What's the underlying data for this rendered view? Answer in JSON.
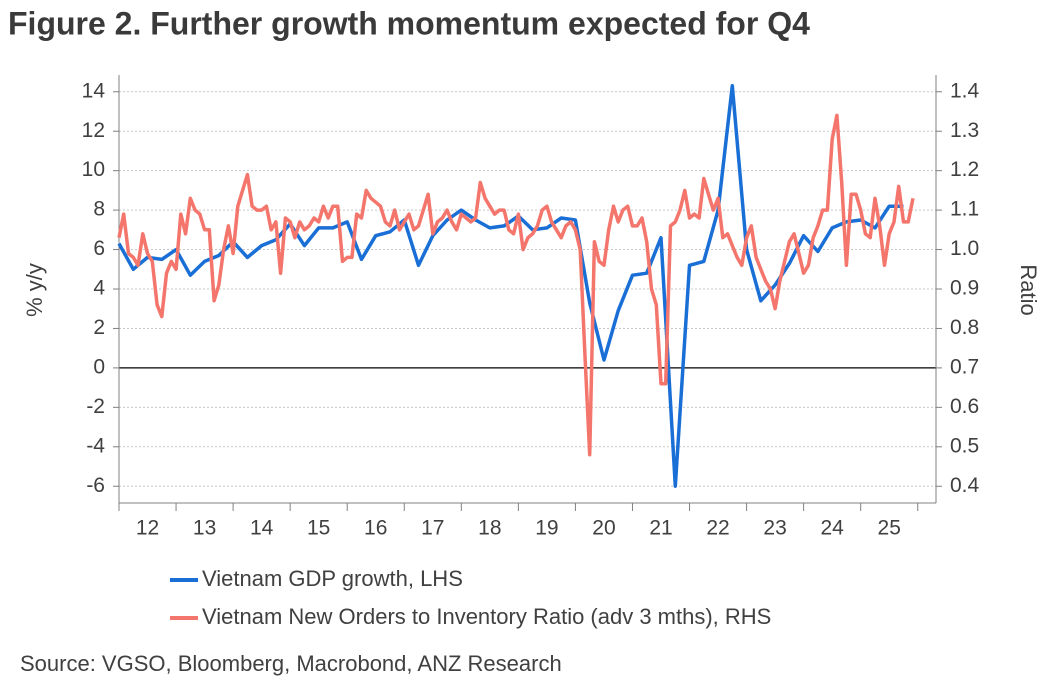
{
  "chart_data": {
    "type": "line",
    "title": "Figure 2. Further growth momentum expected for Q4",
    "y_label": "% y/y",
    "y2_label": "Ratio",
    "source": "Source: VGSO, Bloomberg, Macrobond, ANZ Research",
    "xlim": [
      2012,
      2026.32
    ],
    "xticks": [
      2012,
      2013,
      2014,
      2015,
      2016,
      2017,
      2018,
      2019,
      2020,
      2021,
      2022,
      2023,
      2024,
      2025,
      2026
    ],
    "xtick_labels": [
      {
        "value": 2012.5,
        "label": "12"
      },
      {
        "value": 2013.5,
        "label": "13"
      },
      {
        "value": 2014.5,
        "label": "14"
      },
      {
        "value": 2015.5,
        "label": "15"
      },
      {
        "value": 2016.5,
        "label": "16"
      },
      {
        "value": 2017.5,
        "label": "17"
      },
      {
        "value": 2018.5,
        "label": "18"
      },
      {
        "value": 2019.5,
        "label": "19"
      },
      {
        "value": 2020.5,
        "label": "20"
      },
      {
        "value": 2021.5,
        "label": "21"
      },
      {
        "value": 2022.5,
        "label": "22"
      },
      {
        "value": 2023.5,
        "label": "23"
      },
      {
        "value": 2024.5,
        "label": "24"
      },
      {
        "value": 2025.5,
        "label": "25"
      }
    ],
    "ylim": [
      -6.85,
      14.85
    ],
    "yticks": [
      -6,
      -4,
      -2,
      0,
      2,
      4,
      6,
      8,
      10,
      12,
      14
    ],
    "y2lim": [
      0.3575,
      1.4425
    ],
    "y2ticks": [
      0.4,
      0.5,
      0.6,
      0.7,
      0.8,
      0.9,
      {
        "value": 1,
        "label": "1.0"
      },
      1.1,
      1.2,
      1.3,
      1.4
    ],
    "grid": true,
    "legend": "bottom",
    "series": [
      {
        "name": "Vietnam GDP growth, LHS",
        "color": "#1a6fd6",
        "axis": "y",
        "x": [
          2012,
          2012.25,
          2012.5,
          2012.75,
          2013,
          2013.25,
          2013.5,
          2013.75,
          2014,
          2014.25,
          2014.5,
          2014.75,
          2015,
          2015.25,
          2015.5,
          2015.75,
          2016,
          2016.25,
          2016.5,
          2016.75,
          2017,
          2017.25,
          2017.5,
          2017.75,
          2018,
          2018.25,
          2018.5,
          2018.75,
          2019,
          2019.25,
          2019.5,
          2019.75,
          2020,
          2020.25,
          2020.5,
          2020.75,
          2021,
          2021.25,
          2021.5,
          2021.75,
          2022,
          2022.25,
          2022.5,
          2022.75,
          2023,
          2023.25,
          2023.5,
          2023.75,
          2024,
          2024.25,
          2024.5,
          2024.75,
          2025,
          2025.25,
          2025.5,
          2025.75
        ],
        "values": [
          6.3,
          5.0,
          5.6,
          5.5,
          6.0,
          4.7,
          5.4,
          5.7,
          6.4,
          5.6,
          6.2,
          6.5,
          7.3,
          6.2,
          7.1,
          7.1,
          7.4,
          5.5,
          6.7,
          6.9,
          7.5,
          5.2,
          6.7,
          7.5,
          8.0,
          7.5,
          7.1,
          7.2,
          7.7,
          7.0,
          7.1,
          7.6,
          7.5,
          3.3,
          0.4,
          2.9,
          4.7,
          4.8,
          6.6,
          -6.0,
          5.2,
          5.4,
          8.0,
          14.3,
          6.0,
          3.4,
          4.2,
          5.3,
          6.7,
          5.9,
          7.1,
          7.4,
          7.5,
          7.1,
          8.2,
          8.2
        ]
      },
      {
        "name": "Vietnam New Orders to Inventory Ratio (adv 3 mths), RHS",
        "color": "#f4756b",
        "axis": "y2",
        "x": [
          2012,
          2012.083,
          2012.167,
          2012.25,
          2012.333,
          2012.417,
          2012.5,
          2012.583,
          2012.667,
          2012.75,
          2012.833,
          2012.917,
          2013,
          2013.083,
          2013.167,
          2013.25,
          2013.333,
          2013.417,
          2013.5,
          2013.583,
          2013.667,
          2013.75,
          2013.833,
          2013.917,
          2014,
          2014.083,
          2014.167,
          2014.25,
          2014.333,
          2014.417,
          2014.5,
          2014.583,
          2014.667,
          2014.75,
          2014.833,
          2014.917,
          2015,
          2015.083,
          2015.167,
          2015.25,
          2015.333,
          2015.417,
          2015.5,
          2015.583,
          2015.667,
          2015.75,
          2015.833,
          2015.917,
          2016,
          2016.083,
          2016.167,
          2016.25,
          2016.333,
          2016.417,
          2016.5,
          2016.583,
          2016.667,
          2016.75,
          2016.833,
          2016.917,
          2017,
          2017.083,
          2017.167,
          2017.25,
          2017.333,
          2017.417,
          2017.5,
          2017.583,
          2017.667,
          2017.75,
          2017.833,
          2017.917,
          2018,
          2018.083,
          2018.167,
          2018.25,
          2018.333,
          2018.417,
          2018.5,
          2018.583,
          2018.667,
          2018.75,
          2018.833,
          2018.917,
          2019,
          2019.083,
          2019.167,
          2019.25,
          2019.333,
          2019.417,
          2019.5,
          2019.583,
          2019.667,
          2019.75,
          2019.833,
          2019.917,
          2020,
          2020.083,
          2020.167,
          2020.25,
          2020.333,
          2020.417,
          2020.5,
          2020.583,
          2020.667,
          2020.75,
          2020.833,
          2020.917,
          2021,
          2021.083,
          2021.167,
          2021.25,
          2021.333,
          2021.417,
          2021.5,
          2021.583,
          2021.667,
          2021.75,
          2021.833,
          2021.917,
          2022,
          2022.083,
          2022.167,
          2022.25,
          2022.333,
          2022.417,
          2022.5,
          2022.583,
          2022.667,
          2022.75,
          2022.833,
          2022.917,
          2023,
          2023.083,
          2023.167,
          2023.25,
          2023.333,
          2023.417,
          2023.5,
          2023.583,
          2023.667,
          2023.75,
          2023.833,
          2023.917,
          2024,
          2024.083,
          2024.167,
          2024.25,
          2024.333,
          2024.417,
          2024.5,
          2024.583,
          2024.667,
          2024.75,
          2024.833,
          2024.917,
          2025,
          2025.083,
          2025.167,
          2025.25,
          2025.333,
          2025.417,
          2025.5,
          2025.583,
          2025.667,
          2025.75,
          2025.833,
          2025.917
        ],
        "values": [
          1.03,
          1.09,
          0.99,
          0.98,
          0.96,
          1.04,
          0.99,
          0.97,
          0.86,
          0.83,
          0.94,
          0.97,
          0.95,
          1.09,
          1.04,
          1.13,
          1.1,
          1.09,
          1.05,
          1.05,
          0.87,
          0.91,
          1.0,
          1.06,
          0.99,
          1.11,
          1.15,
          1.19,
          1.11,
          1.1,
          1.1,
          1.11,
          1.05,
          1.07,
          0.94,
          1.08,
          1.07,
          1.03,
          1.07,
          1.05,
          1.06,
          1.08,
          1.07,
          1.11,
          1.08,
          1.11,
          1.11,
          0.97,
          0.98,
          0.98,
          1.09,
          1.08,
          1.15,
          1.13,
          1.12,
          1.11,
          1.07,
          1.06,
          1.1,
          1.05,
          1.07,
          1.09,
          1.05,
          1.06,
          1.1,
          1.14,
          1.04,
          1.07,
          1.08,
          1.1,
          1.07,
          1.05,
          1.09,
          1.08,
          1.07,
          1.08,
          1.17,
          1.13,
          1.11,
          1.09,
          1.1,
          1.1,
          1.05,
          1.04,
          1.09,
          1.0,
          1.03,
          1.04,
          1.06,
          1.1,
          1.11,
          1.07,
          1.05,
          1.03,
          1.06,
          1.07,
          1.05,
          1.0,
          0.73,
          0.48,
          1.02,
          0.97,
          0.96,
          1.05,
          1.11,
          1.07,
          1.1,
          1.11,
          1.06,
          1.06,
          1.08,
          1.02,
          0.9,
          0.86,
          0.66,
          0.66,
          1.06,
          1.07,
          1.1,
          1.15,
          1.08,
          1.09,
          1.08,
          1.18,
          1.14,
          1.1,
          1.13,
          1.03,
          1.04,
          1.01,
          0.98,
          0.96,
          1.03,
          1.06,
          0.98,
          0.95,
          0.92,
          0.9,
          0.85,
          0.92,
          0.97,
          1.02,
          1.04,
          0.99,
          0.94,
          0.96,
          1.03,
          1.06,
          1.1,
          1.1,
          1.28,
          1.34,
          1.17,
          0.96,
          1.14,
          1.14,
          1.1,
          1.04,
          1.03,
          1.13,
          1.06,
          0.96,
          1.04,
          1.07,
          1.16,
          1.07,
          1.07,
          1.13
        ]
      }
    ]
  }
}
